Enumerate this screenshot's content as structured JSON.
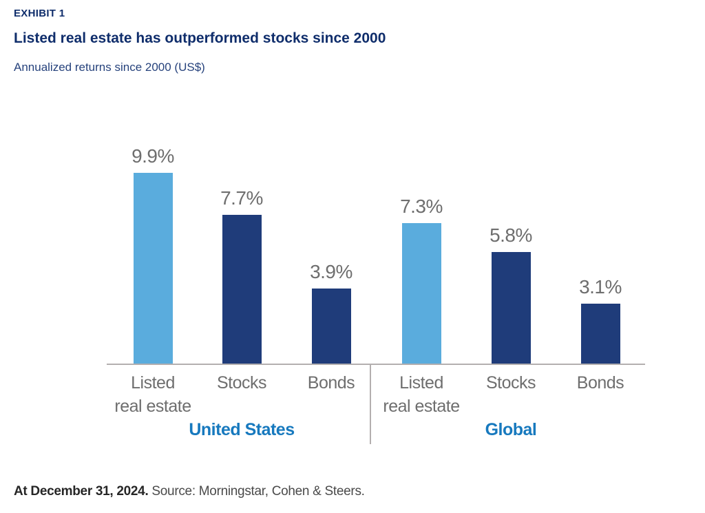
{
  "header": {
    "exhibit": "EXHIBIT 1",
    "title": "Listed real estate has outperformed stocks since 2000",
    "subtitle": "Annualized returns since 2000 (US$)"
  },
  "footer": {
    "date_label": "At December 31, 2024.",
    "source": "Source: Morningstar, Cohen & Steers."
  },
  "chart_data": {
    "type": "bar",
    "unit": "%",
    "title": "Listed real estate has outperformed stocks since 2000",
    "subtitle": "Annualized returns since 2000 (US$)",
    "ylim": [
      0,
      11
    ],
    "grid": false,
    "value_labels": true,
    "legend": "none",
    "palette": {
      "light_blue": "#5AACDD",
      "dark_navy": "#1F3C7A",
      "label_gray": "#6E6E6E",
      "group_label_blue": "#1779BE",
      "axis_gray": "#B3AFAF"
    },
    "groups": [
      {
        "label": "United States",
        "bars": [
          {
            "id": "us-listed-real-estate",
            "category": "Listed\nreal estate",
            "value": 9.9,
            "label": "9.9%",
            "color": "light_blue"
          },
          {
            "id": "us-stocks",
            "category": "Stocks",
            "value": 7.7,
            "label": "7.7%",
            "color": "dark_navy"
          },
          {
            "id": "us-bonds",
            "category": "Bonds",
            "value": 3.9,
            "label": "3.9%",
            "color": "dark_navy"
          }
        ]
      },
      {
        "label": "Global",
        "bars": [
          {
            "id": "global-listed-real-estate",
            "category": "Listed\nreal estate",
            "value": 7.3,
            "label": "7.3%",
            "color": "light_blue"
          },
          {
            "id": "global-stocks",
            "category": "Stocks",
            "value": 5.8,
            "label": "5.8%",
            "color": "dark_navy"
          },
          {
            "id": "global-bonds",
            "category": "Bonds",
            "value": 3.1,
            "label": "3.1%",
            "color": "dark_navy"
          }
        ]
      }
    ]
  }
}
